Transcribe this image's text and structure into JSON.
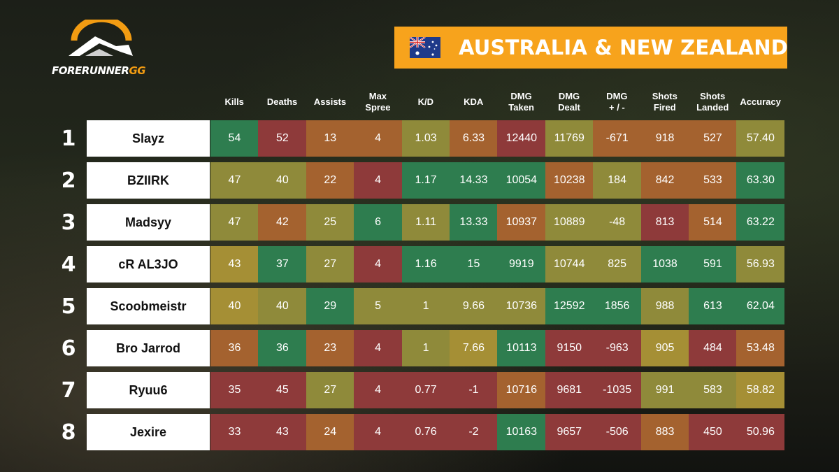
{
  "logo": {
    "text_main": "FORERUNNER",
    "text_accent": "GG"
  },
  "region": {
    "title": "AUSTRALIA & NEW ZEALAND",
    "flag_icon": "australia-flag-icon"
  },
  "columns": [
    "Kills",
    "Deaths",
    "Assists",
    "Max\nSpree",
    "K/D",
    "KDA",
    "DMG\nTaken",
    "DMG\nDealt",
    "DMG\n+ / -",
    "Shots\nFired",
    "Shots\nLanded",
    "Accuracy"
  ],
  "colors": {
    "green": "#2e7d4f",
    "olive": "#8f8a3a",
    "yellow": "#a58f35",
    "red": "#8e3a3a",
    "orange": "#a4622f",
    "banner": "#f7a31c"
  },
  "rows": [
    {
      "rank": "1",
      "player": "Slayz",
      "values": [
        "54",
        "52",
        "13",
        "4",
        "1.03",
        "6.33",
        "12440",
        "11769",
        "-671",
        "918",
        "527",
        "57.40"
      ],
      "shade": [
        "green",
        "red",
        "orange",
        "orange",
        "olive",
        "orange",
        "red",
        "olive",
        "orange",
        "orange",
        "orange",
        "olive"
      ]
    },
    {
      "rank": "2",
      "player": "BZIIRK",
      "values": [
        "47",
        "40",
        "22",
        "4",
        "1.17",
        "14.33",
        "10054",
        "10238",
        "184",
        "842",
        "533",
        "63.30"
      ],
      "shade": [
        "olive",
        "olive",
        "orange",
        "red",
        "green",
        "green",
        "green",
        "orange",
        "olive",
        "orange",
        "orange",
        "green"
      ]
    },
    {
      "rank": "3",
      "player": "Madsyy",
      "values": [
        "47",
        "42",
        "25",
        "6",
        "1.11",
        "13.33",
        "10937",
        "10889",
        "-48",
        "813",
        "514",
        "63.22"
      ],
      "shade": [
        "olive",
        "orange",
        "olive",
        "green",
        "olive",
        "green",
        "orange",
        "olive",
        "olive",
        "red",
        "orange",
        "green"
      ]
    },
    {
      "rank": "4",
      "player": "cR AL3JO",
      "values": [
        "43",
        "37",
        "27",
        "4",
        "1.16",
        "15",
        "9919",
        "10744",
        "825",
        "1038",
        "591",
        "56.93"
      ],
      "shade": [
        "yellow",
        "green",
        "olive",
        "red",
        "green",
        "green",
        "green",
        "olive",
        "olive",
        "green",
        "green",
        "olive"
      ]
    },
    {
      "rank": "5",
      "player": "Scoobmeistr",
      "values": [
        "40",
        "40",
        "29",
        "5",
        "1",
        "9.66",
        "10736",
        "12592",
        "1856",
        "988",
        "613",
        "62.04"
      ],
      "shade": [
        "yellow",
        "olive",
        "green",
        "olive",
        "olive",
        "olive",
        "olive",
        "green",
        "green",
        "olive",
        "green",
        "green"
      ]
    },
    {
      "rank": "6",
      "player": "Bro Jarrod",
      "values": [
        "36",
        "36",
        "23",
        "4",
        "1",
        "7.66",
        "10113",
        "9150",
        "-963",
        "905",
        "484",
        "53.48"
      ],
      "shade": [
        "orange",
        "green",
        "orange",
        "red",
        "olive",
        "yellow",
        "green",
        "red",
        "red",
        "yellow",
        "red",
        "orange"
      ]
    },
    {
      "rank": "7",
      "player": "Ryuu6",
      "values": [
        "35",
        "45",
        "27",
        "4",
        "0.77",
        "-1",
        "10716",
        "9681",
        "-1035",
        "991",
        "583",
        "58.82"
      ],
      "shade": [
        "red",
        "red",
        "olive",
        "red",
        "red",
        "red",
        "orange",
        "red",
        "red",
        "olive",
        "olive",
        "yellow"
      ]
    },
    {
      "rank": "8",
      "player": "Jexire",
      "values": [
        "33",
        "43",
        "24",
        "4",
        "0.76",
        "-2",
        "10163",
        "9657",
        "-506",
        "883",
        "450",
        "50.96"
      ],
      "shade": [
        "red",
        "red",
        "orange",
        "red",
        "red",
        "red",
        "green",
        "red",
        "red",
        "orange",
        "red",
        "red"
      ]
    }
  ]
}
